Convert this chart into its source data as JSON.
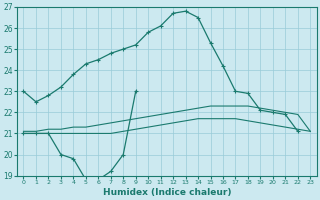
{
  "xlabel": "Humidex (Indice chaleur)",
  "xlim": [
    -0.5,
    23.5
  ],
  "ylim": [
    19,
    27
  ],
  "yticks": [
    19,
    20,
    21,
    22,
    23,
    24,
    25,
    26,
    27
  ],
  "xticks": [
    0,
    1,
    2,
    3,
    4,
    5,
    6,
    7,
    8,
    9,
    10,
    11,
    12,
    13,
    14,
    15,
    16,
    17,
    18,
    19,
    20,
    21,
    22,
    23
  ],
  "bg_color": "#cce9f0",
  "line_color": "#1a7a6e",
  "grid_color": "#99ccd9",
  "line_main_x": [
    0,
    1,
    2,
    3,
    4,
    5,
    6,
    7,
    8,
    9,
    10,
    11,
    12,
    13,
    14,
    15,
    16,
    17,
    18,
    19,
    20,
    21,
    22,
    23
  ],
  "line_main_y": [
    23.0,
    22.5,
    22.8,
    23.2,
    23.8,
    24.3,
    24.5,
    24.8,
    25.0,
    25.2,
    25.8,
    26.1,
    26.7,
    26.8,
    26.5,
    25.3,
    24.2,
    23.0,
    22.9,
    22.1,
    22.0,
    21.9,
    21.1,
    null
  ],
  "line_dip_x": [
    0,
    1,
    2,
    3,
    4,
    5,
    6,
    7,
    8,
    9
  ],
  "line_dip_y": [
    21.0,
    21.0,
    21.0,
    20.0,
    19.8,
    18.8,
    18.8,
    19.2,
    20.0,
    23.0
  ],
  "line_upper_x": [
    0,
    1,
    2,
    3,
    4,
    5,
    6,
    7,
    8,
    9,
    10,
    11,
    12,
    13,
    14,
    15,
    16,
    17,
    18,
    19,
    20,
    21,
    22,
    23
  ],
  "line_upper_y": [
    21.1,
    21.1,
    21.2,
    21.2,
    21.3,
    21.3,
    21.4,
    21.5,
    21.6,
    21.7,
    21.8,
    21.9,
    22.0,
    22.1,
    22.2,
    22.3,
    22.3,
    22.3,
    22.3,
    22.2,
    22.1,
    22.0,
    21.9,
    21.1
  ],
  "line_lower_x": [
    0,
    1,
    2,
    3,
    4,
    5,
    6,
    7,
    8,
    9,
    10,
    11,
    12,
    13,
    14,
    15,
    16,
    17,
    18,
    19,
    20,
    21,
    22,
    23
  ],
  "line_lower_y": [
    21.0,
    21.0,
    21.0,
    21.0,
    21.0,
    21.0,
    21.0,
    21.0,
    21.1,
    21.2,
    21.3,
    21.4,
    21.5,
    21.6,
    21.7,
    21.7,
    21.7,
    21.7,
    21.6,
    21.5,
    21.4,
    21.3,
    21.2,
    21.1
  ]
}
